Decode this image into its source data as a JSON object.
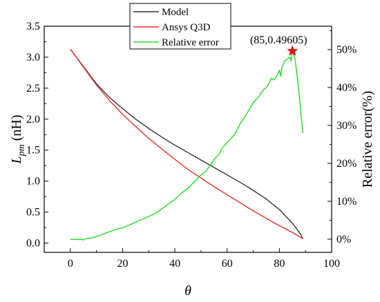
{
  "chart_data": {
    "type": "line",
    "x_axis": {
      "label": "θ",
      "range": [
        -10,
        100
      ],
      "ticks": [
        0,
        20,
        40,
        60,
        80,
        100
      ]
    },
    "y_axis_left": {
      "label_main": "L",
      "label_sub": "pm",
      "label_unit": " (nH)",
      "range": [
        -0.15,
        3.5
      ],
      "ticks": [
        0.0,
        0.5,
        1.0,
        1.5,
        2.0,
        2.5,
        3.0,
        3.5
      ],
      "tick_labels": [
        "0.0",
        "0.5",
        "1.0",
        "1.5",
        "2.0",
        "2.5",
        "3.0",
        "3.5"
      ]
    },
    "y_axis_right": {
      "label": "Relative error(%)",
      "range": [
        -0.0346,
        0.5616
      ],
      "ticks": [
        0,
        0.1,
        0.2,
        0.3,
        0.4,
        0.5
      ],
      "tick_labels": [
        "0%",
        "10%",
        "20%",
        "30%",
        "40%",
        "50%"
      ]
    },
    "series": [
      {
        "name": "Model",
        "color": "#333333",
        "axis": "left",
        "x": [
          0,
          5,
          10,
          15,
          20,
          25,
          30,
          35,
          40,
          45,
          50,
          55,
          60,
          65,
          70,
          75,
          80,
          85,
          88,
          89
        ],
        "y": [
          3.13,
          2.85,
          2.57,
          2.35,
          2.17,
          2.0,
          1.85,
          1.71,
          1.58,
          1.46,
          1.34,
          1.22,
          1.1,
          0.98,
          0.85,
          0.71,
          0.54,
          0.32,
          0.15,
          0.07
        ]
      },
      {
        "name": "Ansys Q3D",
        "color": "#e8302a",
        "axis": "left",
        "x": [
          0,
          5,
          10,
          15,
          20,
          25,
          30,
          35,
          40,
          45,
          50,
          55,
          60,
          65,
          70,
          75,
          80,
          85,
          89
        ],
        "y": [
          3.13,
          2.84,
          2.55,
          2.3,
          2.08,
          1.88,
          1.69,
          1.52,
          1.35,
          1.19,
          1.05,
          0.91,
          0.78,
          0.65,
          0.52,
          0.4,
          0.28,
          0.17,
          0.07
        ]
      },
      {
        "name": "Relative error",
        "color": "#22dd22",
        "axis": "right",
        "x": [
          0,
          3,
          4,
          5,
          6,
          8,
          10,
          12,
          15,
          18,
          20,
          25,
          30,
          33,
          35,
          38,
          40,
          42,
          45,
          48,
          50,
          52,
          55,
          57,
          58,
          60,
          62,
          63,
          65,
          67,
          70,
          72,
          74,
          75,
          76,
          77,
          78,
          79,
          80,
          80.5,
          81,
          81.5,
          82,
          83,
          84,
          84.5,
          85,
          86,
          87,
          88,
          89
        ],
        "y": [
          0.0,
          -0.001,
          0.0,
          -0.002,
          0.002,
          0.003,
          0.007,
          0.012,
          0.02,
          0.027,
          0.03,
          0.045,
          0.06,
          0.07,
          0.08,
          0.095,
          0.105,
          0.118,
          0.135,
          0.155,
          0.17,
          0.18,
          0.21,
          0.225,
          0.24,
          0.255,
          0.27,
          0.278,
          0.305,
          0.325,
          0.36,
          0.375,
          0.395,
          0.4,
          0.41,
          0.425,
          0.42,
          0.43,
          0.445,
          0.43,
          0.455,
          0.46,
          0.47,
          0.475,
          0.48,
          0.47,
          0.496,
          0.475,
          0.42,
          0.35,
          0.28
        ]
      }
    ],
    "annotation": {
      "text": "(85,0.49605)",
      "x": 85,
      "y": 0.49605,
      "axis": "right",
      "marker": "star",
      "marker_color": "#e81414"
    },
    "legend_position": "top-center",
    "grid": false
  }
}
